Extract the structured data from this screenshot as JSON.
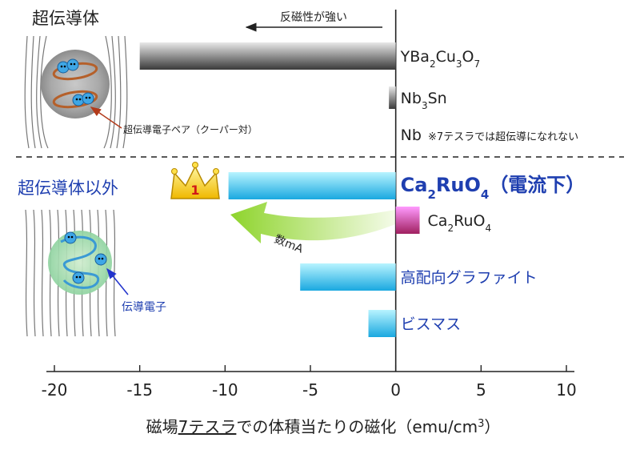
{
  "chart_data": {
    "type": "bar",
    "orientation": "horizontal",
    "xlabel_prefix": "磁場",
    "xlabel_underlined": "7テスラ",
    "xlabel_suffix": "での体積当たりの磁化（emu/cm",
    "xlabel_sup": "3",
    "xlabel_close": "）",
    "xlim": [
      -20,
      10
    ],
    "xticks": [
      -20,
      -15,
      -10,
      -5,
      0,
      5,
      10
    ],
    "xtick_labels": [
      "-20",
      "-15",
      "-10",
      "-5",
      "0",
      "5",
      "10"
    ],
    "grid": false,
    "groups": [
      {
        "name": "超伝導体",
        "color": "#222222"
      },
      {
        "name": "超伝導体以外",
        "color": "#1f3fb0"
      }
    ],
    "bars": [
      {
        "label_pre": "YBa",
        "label_subs": [
          [
            "2",
            "Cu"
          ],
          [
            "3",
            "O"
          ],
          [
            "7",
            ""
          ]
        ],
        "value": -15.0,
        "gradient": [
          "#e8e8e8",
          "#3a3a3a"
        ]
      },
      {
        "label_pre": "Nb",
        "label_subs": [
          [
            "3",
            "Sn"
          ]
        ],
        "value": -0.4,
        "gradient": [
          "#e8e8e8",
          "#3a3a3a"
        ]
      },
      {
        "label_pre": "Nb",
        "label_subs": [],
        "value": 0,
        "note": "※7テスラでは超伝導になれない",
        "gradient": [
          "#e8e8e8",
          "#3a3a3a"
        ]
      },
      {
        "label_pre": "Ca",
        "label_subs": [
          [
            "2",
            "RuO"
          ],
          [
            "4",
            ""
          ]
        ],
        "label_suffix": "（電流下）",
        "value": -9.8,
        "highlight": true,
        "gradient": [
          "#b8f4ff",
          "#1aa8e0"
        ]
      },
      {
        "label_pre": "Ca",
        "label_subs": [
          [
            "2",
            "RuO"
          ],
          [
            "4",
            ""
          ]
        ],
        "value": 1.4,
        "gradient": [
          "#ff9aff",
          "#a02060"
        ]
      },
      {
        "label_pre": "高配向グラファイト",
        "label_subs": [],
        "value": -5.6,
        "gradient": [
          "#b8f4ff",
          "#1aa8e0"
        ]
      },
      {
        "label_pre": "ビスマス",
        "label_subs": [],
        "value": -1.6,
        "gradient": [
          "#b8f4ff",
          "#1aa8e0"
        ]
      }
    ],
    "annotations": {
      "arrow_text": "反磁性が強い",
      "cooper_pair": "超伝導電子ペア（クーパー対）",
      "conduction_electron": "伝導電子",
      "crown_number": "1",
      "current_label": "数mA"
    }
  }
}
